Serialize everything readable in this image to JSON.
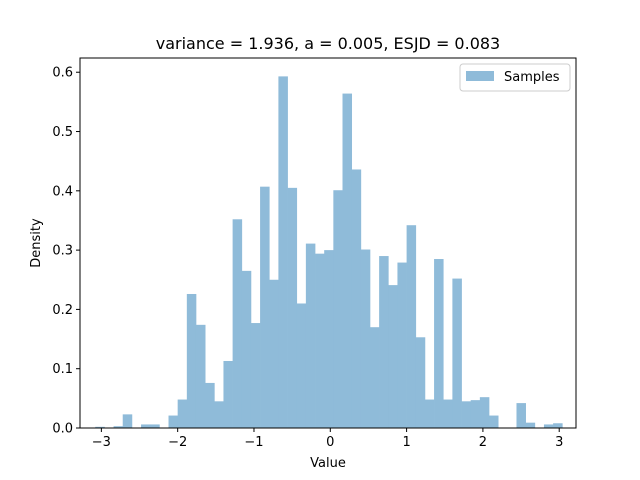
{
  "chart_data": {
    "type": "bar",
    "title": "variance = 1.936, a = 0.005, ESJD = 0.083",
    "xlabel": "Value",
    "ylabel": "Density",
    "xlim": [
      -3.28,
      3.22
    ],
    "ylim": [
      0,
      0.624
    ],
    "xticks": [
      -3,
      -2,
      -1,
      0,
      1,
      2,
      3
    ],
    "yticks": [
      0.0,
      0.1,
      0.2,
      0.3,
      0.4,
      0.5,
      0.6
    ],
    "xtick_labels": [
      "−3",
      "−2",
      "−1",
      "0",
      "1",
      "2",
      "3"
    ],
    "ytick_labels": [
      "0.0",
      "0.1",
      "0.2",
      "0.3",
      "0.4",
      "0.5",
      "0.6"
    ],
    "bin_start": -3.08,
    "bin_width": 0.12,
    "values": [
      0.002,
      0.0,
      0.003,
      0.023,
      0.0,
      0.006,
      0.006,
      0.0,
      0.021,
      0.048,
      0.226,
      0.174,
      0.076,
      0.045,
      0.113,
      0.352,
      0.265,
      0.177,
      0.407,
      0.25,
      0.593,
      0.405,
      0.21,
      0.311,
      0.294,
      0.3,
      0.401,
      0.564,
      0.436,
      0.301,
      0.17,
      0.29,
      0.241,
      0.279,
      0.342,
      0.153,
      0.048,
      0.285,
      0.048,
      0.252,
      0.045,
      0.047,
      0.052,
      0.021,
      0.0,
      0.0,
      0.042,
      0.009,
      0.0,
      0.006,
      0.008,
      0.0
    ],
    "series_name": "Samples",
    "color": "#8fbbd9",
    "legend_position": "upper right",
    "grid": false
  }
}
